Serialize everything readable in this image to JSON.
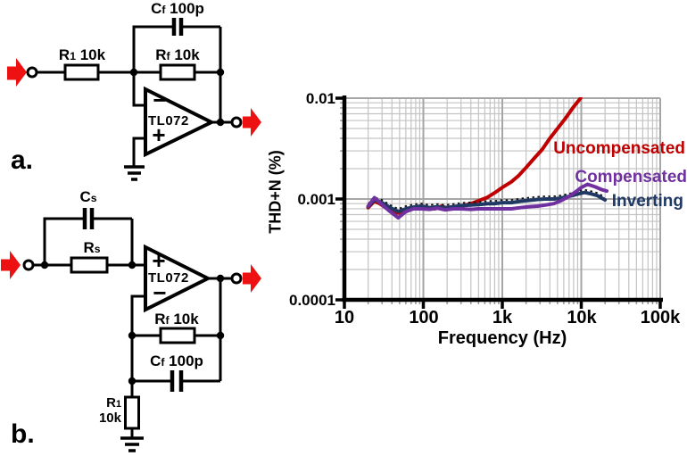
{
  "circuit_a": {
    "panel_label": "a.",
    "opamp": "TL072",
    "minus": "−",
    "plus": "+",
    "r1": {
      "sym": "R",
      "sub": "1",
      "val": " 10k"
    },
    "rf": {
      "sym": "R",
      "sub": "f",
      "val": " 10k"
    },
    "cf": {
      "sym": "C",
      "sub": "f",
      "val": " 100p"
    }
  },
  "circuit_b": {
    "panel_label": "b.",
    "opamp": "TL072",
    "minus": "−",
    "plus": "+",
    "cs": {
      "sym": "C",
      "sub": "s",
      "val": ""
    },
    "rs": {
      "sym": "R",
      "sub": "s",
      "val": ""
    },
    "rf": {
      "sym": "R",
      "sub": "f",
      "val": " 10k"
    },
    "cf": {
      "sym": "C",
      "sub": "f",
      "val": " 100p"
    },
    "r1": {
      "sym": "R",
      "sub": "1",
      "val": "10k"
    }
  },
  "chart_data": {
    "type": "line",
    "x_axis": {
      "label": "Frequency (Hz)",
      "scale": "log",
      "min": 10,
      "max": 100000,
      "ticks": [
        "10",
        "100",
        "1k",
        "10k",
        "100k"
      ]
    },
    "y_axis": {
      "label": "THD+N (%)",
      "scale": "log",
      "min": 0.0001,
      "max": 0.01,
      "ticks": [
        "0.01",
        "0.001",
        "0.0001"
      ]
    },
    "grid": "log minor + major, light gray",
    "legend_position": "right-inside",
    "series": [
      {
        "name": "Uncompensated",
        "color": "#C00000",
        "points": [
          [
            20,
            0.00082
          ],
          [
            24,
            0.00095
          ],
          [
            28,
            0.0009
          ],
          [
            35,
            0.0008
          ],
          [
            45,
            0.00073
          ],
          [
            55,
            0.00072
          ],
          [
            70,
            0.0008
          ],
          [
            90,
            0.00085
          ],
          [
            110,
            0.00083
          ],
          [
            140,
            0.0008
          ],
          [
            170,
            0.00085
          ],
          [
            210,
            0.0008
          ],
          [
            260,
            0.00083
          ],
          [
            320,
            0.00086
          ],
          [
            400,
            0.0009
          ],
          [
            500,
            0.00096
          ],
          [
            650,
            0.00104
          ],
          [
            800,
            0.00115
          ],
          [
            1000,
            0.0013
          ],
          [
            1300,
            0.00148
          ],
          [
            1600,
            0.0017
          ],
          [
            2000,
            0.00205
          ],
          [
            2500,
            0.0025
          ],
          [
            3200,
            0.0031
          ],
          [
            4000,
            0.004
          ],
          [
            5000,
            0.005
          ],
          [
            6300,
            0.0063
          ],
          [
            8000,
            0.0082
          ],
          [
            9800,
            0.01
          ]
        ]
      },
      {
        "name": "Inverting",
        "color": "#1F3864",
        "dotted_top": true,
        "points": [
          [
            20,
            0.00084
          ],
          [
            24,
            0.00098
          ],
          [
            30,
            0.00092
          ],
          [
            38,
            0.00082
          ],
          [
            48,
            0.00075
          ],
          [
            60,
            0.0008
          ],
          [
            75,
            0.00083
          ],
          [
            95,
            0.00085
          ],
          [
            120,
            0.00082
          ],
          [
            150,
            0.00084
          ],
          [
            190,
            0.00082
          ],
          [
            240,
            0.00084
          ],
          [
            300,
            0.00086
          ],
          [
            400,
            0.00087
          ],
          [
            500,
            0.00088
          ],
          [
            650,
            0.0009
          ],
          [
            800,
            0.0009
          ],
          [
            1000,
            0.00092
          ],
          [
            1300,
            0.00092
          ],
          [
            1700,
            0.00095
          ],
          [
            2200,
            0.00097
          ],
          [
            2800,
            0.00099
          ],
          [
            3500,
            0.001
          ],
          [
            4500,
            0.001
          ],
          [
            5500,
            0.00102
          ],
          [
            7000,
            0.00106
          ],
          [
            9000,
            0.00112
          ],
          [
            11000,
            0.00116
          ],
          [
            13000,
            0.00113
          ],
          [
            16000,
            0.00108
          ],
          [
            20000,
            0.00098
          ]
        ]
      },
      {
        "name": "Compensated",
        "color": "#7030A0",
        "points": [
          [
            20,
            0.00085
          ],
          [
            24,
            0.00103
          ],
          [
            30,
            0.00088
          ],
          [
            38,
            0.00075
          ],
          [
            48,
            0.00065
          ],
          [
            60,
            0.00075
          ],
          [
            75,
            0.0008
          ],
          [
            95,
            0.0008
          ],
          [
            120,
            0.00079
          ],
          [
            150,
            0.00081
          ],
          [
            190,
            0.00078
          ],
          [
            240,
            0.0008
          ],
          [
            300,
            0.0008
          ],
          [
            400,
            0.00079
          ],
          [
            500,
            0.0008
          ],
          [
            650,
            0.0008
          ],
          [
            800,
            0.0008
          ],
          [
            1000,
            0.0008
          ],
          [
            1300,
            0.0008
          ],
          [
            1700,
            0.00082
          ],
          [
            2200,
            0.00084
          ],
          [
            2800,
            0.00085
          ],
          [
            3500,
            0.00087
          ],
          [
            4500,
            0.0009
          ],
          [
            5500,
            0.00096
          ],
          [
            7000,
            0.00106
          ],
          [
            8500,
            0.00118
          ],
          [
            10000,
            0.0013
          ],
          [
            12000,
            0.0014
          ],
          [
            15000,
            0.00132
          ],
          [
            18000,
            0.00124
          ],
          [
            21000,
            0.0012
          ]
        ]
      }
    ],
    "legend_order": [
      0,
      2,
      1
    ]
  }
}
